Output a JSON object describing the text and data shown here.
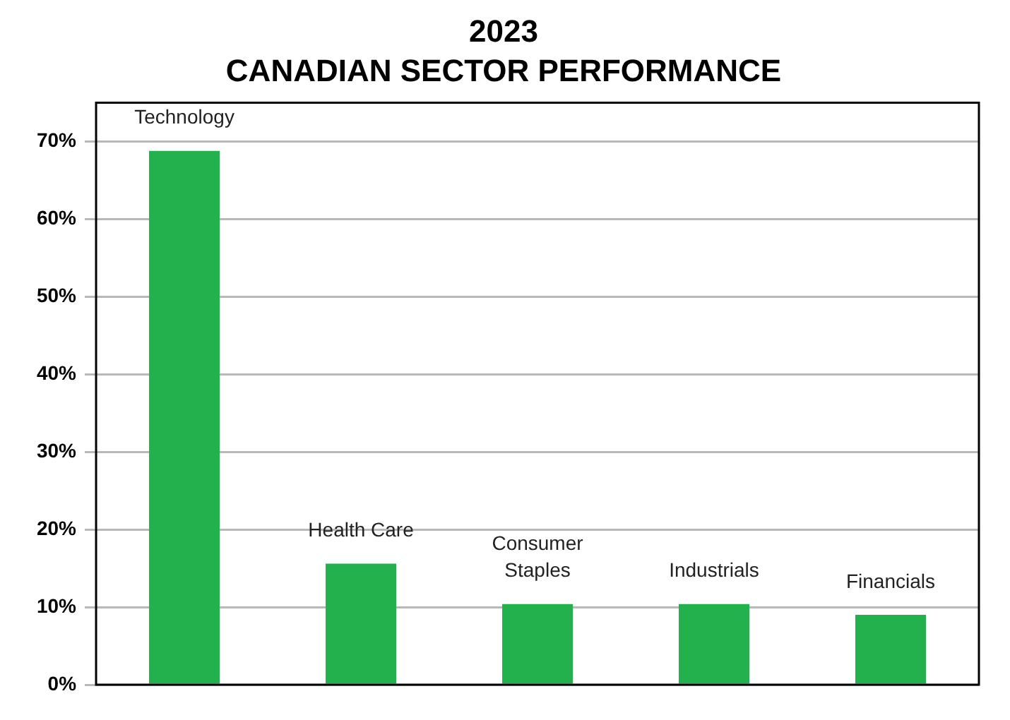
{
  "chart_data": {
    "type": "bar",
    "title": "2023",
    "subtitle": "CANADIAN SECTOR PERFORMANCE",
    "categories": [
      "Technology",
      "Health Care",
      "Consumer Staples",
      "Industrials",
      "Financials"
    ],
    "values": [
      68.8,
      15.6,
      10.4,
      10.4,
      9.0
    ],
    "color": "#22b14c",
    "ylim": [
      0,
      75
    ],
    "yticks": [
      {
        "value": 0,
        "label": "0%"
      },
      {
        "value": 10,
        "label": "10%"
      },
      {
        "value": 20,
        "label": "20%"
      },
      {
        "value": 30,
        "label": "30%"
      },
      {
        "value": 40,
        "label": "40%"
      },
      {
        "value": 50,
        "label": "50%"
      },
      {
        "value": 60,
        "label": "60%"
      },
      {
        "value": 70,
        "label": "70%"
      }
    ],
    "grid": "y",
    "legend": false
  }
}
